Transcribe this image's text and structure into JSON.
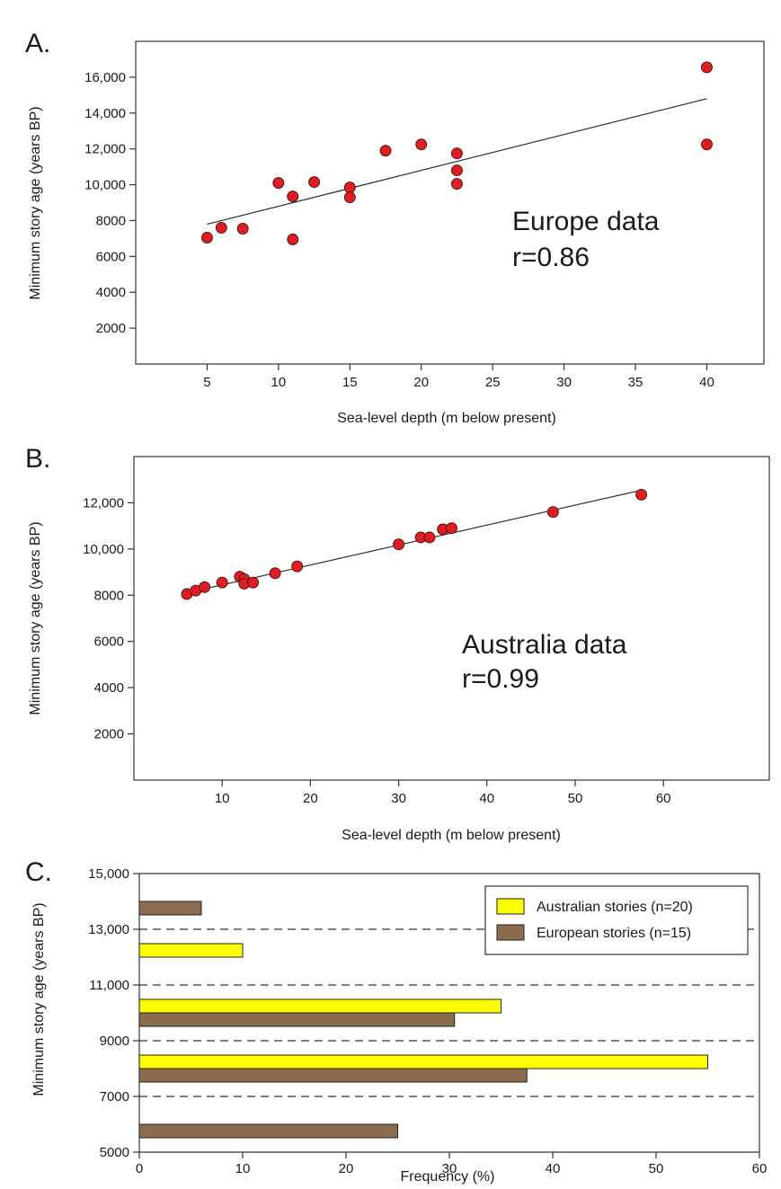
{
  "chart_data": [
    {
      "panel": "A.",
      "type": "scatter",
      "annotation": "Europe data",
      "annotation_r": "r=0.86",
      "xlabel": "Sea-level depth (m below present)",
      "ylabel": "Minimum story age (years BP)",
      "xlim": [
        0,
        44
      ],
      "ylim": [
        0,
        18000
      ],
      "xticks": [
        5,
        10,
        15,
        20,
        25,
        30,
        35,
        40
      ],
      "xtick_labels": [
        "5",
        "10",
        "15",
        "20",
        "25",
        "30",
        "35",
        "40"
      ],
      "yticks": [
        2000,
        4000,
        6000,
        8000,
        10000,
        12000,
        14000,
        16000
      ],
      "ytick_labels": [
        "2000",
        "4000",
        "6000",
        "8000",
        "10,000",
        "12,000",
        "14,000",
        "16,000"
      ],
      "grid": false,
      "points": [
        {
          "x": 5,
          "y": 7050
        },
        {
          "x": 6,
          "y": 7600
        },
        {
          "x": 7.5,
          "y": 7550
        },
        {
          "x": 10,
          "y": 10100
        },
        {
          "x": 11,
          "y": 9350
        },
        {
          "x": 11,
          "y": 6950
        },
        {
          "x": 12.5,
          "y": 10150
        },
        {
          "x": 15,
          "y": 9850
        },
        {
          "x": 15,
          "y": 9300
        },
        {
          "x": 17.5,
          "y": 11900
        },
        {
          "x": 20,
          "y": 12250
        },
        {
          "x": 22.5,
          "y": 11750
        },
        {
          "x": 22.5,
          "y": 10800
        },
        {
          "x": 22.5,
          "y": 10050
        },
        {
          "x": 40,
          "y": 16550
        },
        {
          "x": 40,
          "y": 12250
        }
      ],
      "fit_line": [
        {
          "x": 5,
          "y": 7800
        },
        {
          "x": 40,
          "y": 14800
        }
      ]
    },
    {
      "panel": "B.",
      "type": "scatter",
      "annotation": "Australia data",
      "annotation_r": "r=0.99",
      "xlabel": "Sea-level depth (m below present)",
      "ylabel": "Minimum story age (years BP)",
      "xlim": [
        0,
        72
      ],
      "ylim": [
        0,
        14000
      ],
      "xticks": [
        10,
        20,
        30,
        40,
        50,
        60
      ],
      "xtick_labels": [
        "10",
        "20",
        "30",
        "40",
        "50",
        "60"
      ],
      "yticks": [
        2000,
        4000,
        6000,
        8000,
        10000,
        12000
      ],
      "ytick_labels": [
        "2000",
        "4000",
        "6000",
        "8000",
        "10,000",
        "12,000"
      ],
      "grid": false,
      "points": [
        {
          "x": 6,
          "y": 8050
        },
        {
          "x": 7,
          "y": 8200
        },
        {
          "x": 8,
          "y": 8350
        },
        {
          "x": 10,
          "y": 8550
        },
        {
          "x": 12,
          "y": 8800
        },
        {
          "x": 12.5,
          "y": 8700
        },
        {
          "x": 12.5,
          "y": 8500
        },
        {
          "x": 13.5,
          "y": 8550
        },
        {
          "x": 16,
          "y": 8950
        },
        {
          "x": 18.5,
          "y": 9250
        },
        {
          "x": 30,
          "y": 10200
        },
        {
          "x": 32.5,
          "y": 10500
        },
        {
          "x": 33.5,
          "y": 10500
        },
        {
          "x": 35,
          "y": 10850
        },
        {
          "x": 36,
          "y": 10900
        },
        {
          "x": 47.5,
          "y": 11600
        },
        {
          "x": 57.5,
          "y": 12350
        }
      ],
      "fit_line": [
        {
          "x": 6,
          "y": 8100
        },
        {
          "x": 57,
          "y": 12500
        }
      ]
    },
    {
      "panel": "C.",
      "type": "bar",
      "orientation": "horizontal",
      "xlabel": "Frequency (%)",
      "ylabel": "Minimum story age (years BP)",
      "xlim": [
        0,
        60
      ],
      "ylim": [
        5000,
        15000
      ],
      "xticks": [
        0,
        10,
        20,
        30,
        40,
        50,
        60
      ],
      "xtick_labels": [
        "0",
        "10",
        "20",
        "30",
        "40",
        "50",
        "60"
      ],
      "yticks": [
        5000,
        7000,
        9000,
        11000,
        13000,
        15000
      ],
      "ytick_labels": [
        "5000",
        "7000",
        "9000",
        "11,000",
        "13,000",
        "15,000"
      ],
      "dashed_lines_at": [
        7000,
        9000,
        11000,
        13000
      ],
      "legend_position": "top-right",
      "categories": [
        "5000-7000",
        "7000-9000",
        "9000-11,000",
        "11,000-13,000",
        "13,000-15,000"
      ],
      "series": [
        {
          "name": "Australian stories (n=20)",
          "color": "#ffff00",
          "values": [
            0,
            55,
            35,
            10,
            0
          ]
        },
        {
          "name": "European stories (n=15)",
          "color": "#8a6b4e",
          "values": [
            25,
            37.5,
            30.5,
            0,
            6
          ]
        }
      ]
    }
  ]
}
